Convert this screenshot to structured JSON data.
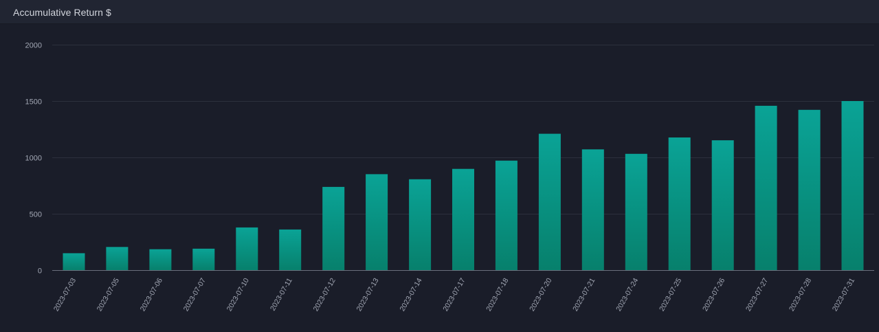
{
  "panel": {
    "title": "Accumulative Return $"
  },
  "chart_data": {
    "type": "bar",
    "title": "Accumulative Return $",
    "xlabel": "",
    "ylabel": "",
    "ylim": [
      0,
      2000
    ],
    "yticks": [
      0,
      500,
      1000,
      1500,
      2000
    ],
    "grid": true,
    "categories": [
      "2023-07-03",
      "2023-07-05",
      "2023-07-06",
      "2023-07-07",
      "2023-07-10",
      "2023-07-11",
      "2023-07-12",
      "2023-07-13",
      "2023-07-14",
      "2023-07-17",
      "2023-07-18",
      "2023-07-20",
      "2023-07-21",
      "2023-07-24",
      "2023-07-25",
      "2023-07-26",
      "2023-07-27",
      "2023-07-28",
      "2023-07-31"
    ],
    "values": [
      150,
      205,
      185,
      190,
      378,
      360,
      737,
      850,
      805,
      897,
      970,
      1208,
      1070,
      1030,
      1175,
      1150,
      1456,
      1420,
      1498
    ],
    "colors": {
      "bar_top": "#0aa396",
      "bar_bottom": "#07806c",
      "grid": "#2c303d",
      "axis": "#6b6f7c",
      "text": "#a3a8b5"
    }
  }
}
